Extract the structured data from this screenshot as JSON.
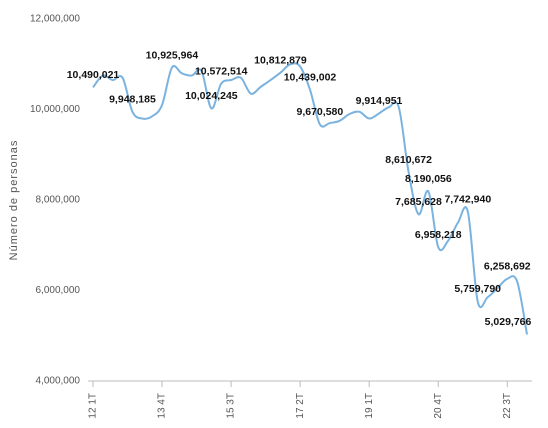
{
  "chart_data": {
    "type": "line",
    "y_label": "Número de personas",
    "categories": [
      "12 1T",
      null,
      null,
      null,
      null,
      null,
      null,
      "13 4T",
      null,
      null,
      null,
      null,
      null,
      null,
      "15 3T",
      null,
      null,
      null,
      null,
      null,
      null,
      "17 2T",
      null,
      null,
      null,
      null,
      null,
      null,
      "19 1T",
      null,
      null,
      null,
      null,
      null,
      null,
      "20 4T",
      null,
      null,
      null,
      null,
      null,
      null,
      "22 3T",
      null,
      null
    ],
    "series": [
      {
        "name": "Número de personas",
        "color": "#7ab3e0",
        "values": [
          10490021,
          10750000,
          10650000,
          10700000,
          9948185,
          9800000,
          9850000,
          10100000,
          10925964,
          10800000,
          10750000,
          10850000,
          10024245,
          10572514,
          10650000,
          10700000,
          10350000,
          10500000,
          10650000,
          10812879,
          11000000,
          10950000,
          10439002,
          9670580,
          9700000,
          9750000,
          9900000,
          9950000,
          9800000,
          9914951,
          10050000,
          10050000,
          8610672,
          7685628,
          8190056,
          6958218,
          7100000,
          7500000,
          7742940,
          5759790,
          5850000,
          6050000,
          6258692,
          6200000,
          5029766
        ],
        "value_labels": [
          "10,490,021",
          null,
          null,
          null,
          "9,948,185",
          null,
          null,
          null,
          "10,925,964",
          null,
          null,
          null,
          "10,024,245",
          "10,572,514",
          null,
          null,
          null,
          null,
          null,
          "10,812,879",
          null,
          null,
          "10,439,002",
          "9,670,580",
          null,
          null,
          null,
          null,
          null,
          "9,914,951",
          null,
          null,
          "8,610,672",
          "7,685,628",
          "8,190,056",
          "6,958,218",
          null,
          null,
          "7,742,940",
          "5,759,790",
          null,
          null,
          "6,258,692",
          null,
          "5,029,766"
        ]
      }
    ],
    "ylim": [
      4000000,
      12000000
    ],
    "yticks": [
      {
        "value": 4000000,
        "label": "4,000,000"
      },
      {
        "value": 6000000,
        "label": "6,000,000"
      },
      {
        "value": 8000000,
        "label": "8,000,000"
      },
      {
        "value": 10000000,
        "label": "10,000,000"
      },
      {
        "value": 12000000,
        "label": "12,000,000"
      }
    ]
  }
}
